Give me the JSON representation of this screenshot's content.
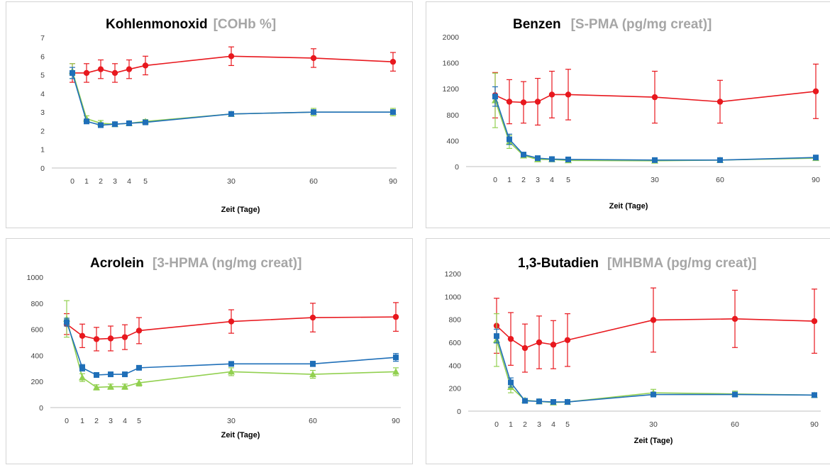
{
  "colors": {
    "red": "#e8181e",
    "blue": "#1f6fb8",
    "green": "#92d050",
    "axis": "#bfbfbf",
    "unit": "#a6a6a6"
  },
  "chart_data": [
    {
      "type": "line",
      "title": "Kohlenmonoxid",
      "unit": "[COHb %]",
      "xlabel": "Zeit (Tage)",
      "ylabel": "",
      "ylim": [
        0,
        7
      ],
      "yticks": [
        "0",
        "1",
        "2",
        "3",
        "4",
        "5",
        "6",
        "7"
      ],
      "x": [
        0,
        1,
        2,
        3,
        4,
        5,
        30,
        60,
        90
      ],
      "xtick_labels": [
        "0",
        "1",
        "2",
        "3",
        "4",
        "5",
        "30",
        "60",
        "90"
      ],
      "grid": false,
      "series": [
        {
          "color": "red",
          "marker": "circle",
          "values": [
            5.1,
            5.1,
            5.3,
            5.1,
            5.3,
            5.5,
            6.0,
            5.9,
            5.7
          ],
          "errors": [
            0.5,
            0.5,
            0.5,
            0.5,
            0.5,
            0.5,
            0.5,
            0.5,
            0.5
          ]
        },
        {
          "color": "blue",
          "marker": "square",
          "values": [
            5.1,
            2.5,
            2.3,
            2.35,
            2.4,
            2.45,
            2.9,
            3.0,
            3.0
          ],
          "errors": [
            0.3,
            0.1,
            0.1,
            0.1,
            0.1,
            0.1,
            0.1,
            0.1,
            0.1
          ]
        },
        {
          "color": "green",
          "marker": "triangle",
          "values": [
            5.2,
            2.65,
            2.4,
            2.35,
            2.4,
            2.5,
            2.9,
            3.0,
            3.0
          ],
          "errors": [
            0.4,
            0.15,
            0.15,
            0.1,
            0.1,
            0.1,
            0.1,
            0.2,
            0.2
          ]
        }
      ]
    },
    {
      "type": "line",
      "title": "Benzen",
      "unit": "[S-PMA (pg/mg creat)]",
      "xlabel": "Zeit (Tage)",
      "ylabel": "",
      "ylim": [
        0,
        2000
      ],
      "yticks": [
        "0",
        "400",
        "800",
        "1200",
        "1600",
        "2000"
      ],
      "x": [
        0,
        1,
        2,
        3,
        4,
        5,
        30,
        60,
        90
      ],
      "xtick_labels": [
        "0",
        "1",
        "2",
        "3",
        "4",
        "5",
        "30",
        "60",
        "90"
      ],
      "grid": false,
      "series": [
        {
          "color": "red",
          "marker": "circle",
          "values": [
            1100,
            1000,
            990,
            1000,
            1110,
            1110,
            1070,
            1000,
            1160
          ],
          "errors": [
            350,
            340,
            320,
            360,
            360,
            390,
            400,
            330,
            420
          ]
        },
        {
          "color": "blue",
          "marker": "square",
          "values": [
            1080,
            420,
            185,
            130,
            115,
            110,
            100,
            100,
            140
          ],
          "errors": [
            150,
            80,
            30,
            20,
            15,
            15,
            15,
            15,
            20
          ]
        },
        {
          "color": "green",
          "marker": "triangle",
          "values": [
            1020,
            380,
            170,
            110,
            110,
            95,
            90,
            100,
            130
          ],
          "errors": [
            420,
            100,
            30,
            20,
            15,
            15,
            15,
            15,
            20
          ]
        }
      ]
    },
    {
      "type": "line",
      "title": "Acrolein",
      "unit": "[3-HPMA (ng/mg creat)]",
      "xlabel": "Zeit (Tage)",
      "ylabel": "",
      "ylim": [
        0,
        1000
      ],
      "yticks": [
        "0",
        "200",
        "400",
        "600",
        "800",
        "1000"
      ],
      "x": [
        0,
        1,
        2,
        3,
        4,
        5,
        30,
        60,
        90
      ],
      "xtick_labels": [
        "0",
        "1",
        "2",
        "3",
        "4",
        "5",
        "30",
        "60",
        "90"
      ],
      "grid": false,
      "series": [
        {
          "color": "red",
          "marker": "circle",
          "values": [
            640,
            550,
            525,
            530,
            540,
            590,
            660,
            690,
            695
          ],
          "errors": [
            80,
            90,
            90,
            95,
            95,
            100,
            90,
            110,
            110
          ]
        },
        {
          "color": "blue",
          "marker": "square",
          "values": [
            655,
            305,
            250,
            255,
            255,
            305,
            335,
            335,
            385
          ],
          "errors": [
            30,
            25,
            15,
            15,
            15,
            15,
            15,
            20,
            30
          ]
        },
        {
          "color": "green",
          "marker": "triangle",
          "values": [
            680,
            230,
            155,
            160,
            160,
            190,
            275,
            255,
            275
          ],
          "errors": [
            140,
            30,
            20,
            20,
            20,
            25,
            30,
            30,
            30
          ]
        }
      ]
    },
    {
      "type": "line",
      "title": "1,3-Butadien",
      "unit": "[MHBMA (pg/mg creat)]",
      "xlabel": "Zeit (Tage)",
      "ylabel": "",
      "ylim": [
        0,
        1200
      ],
      "yticks": [
        "0",
        "200",
        "400",
        "600",
        "800",
        "1000",
        "1200"
      ],
      "x": [
        0,
        1,
        2,
        3,
        4,
        5,
        30,
        60,
        90
      ],
      "xtick_labels": [
        "0",
        "1",
        "2",
        "3",
        "4",
        "5",
        "30",
        "60",
        "90"
      ],
      "grid": false,
      "series": [
        {
          "color": "red",
          "marker": "circle",
          "values": [
            745,
            630,
            550,
            600,
            580,
            620,
            795,
            805,
            785
          ],
          "errors": [
            240,
            230,
            210,
            230,
            210,
            230,
            280,
            250,
            280
          ]
        },
        {
          "color": "blue",
          "marker": "square",
          "values": [
            655,
            250,
            90,
            85,
            80,
            80,
            145,
            145,
            140
          ],
          "errors": [
            60,
            40,
            10,
            10,
            10,
            10,
            20,
            20,
            15
          ]
        },
        {
          "color": "green",
          "marker": "triangle",
          "values": [
            620,
            210,
            95,
            85,
            75,
            80,
            160,
            150,
            140
          ],
          "errors": [
            230,
            50,
            15,
            10,
            10,
            10,
            30,
            25,
            15
          ]
        }
      ]
    }
  ]
}
